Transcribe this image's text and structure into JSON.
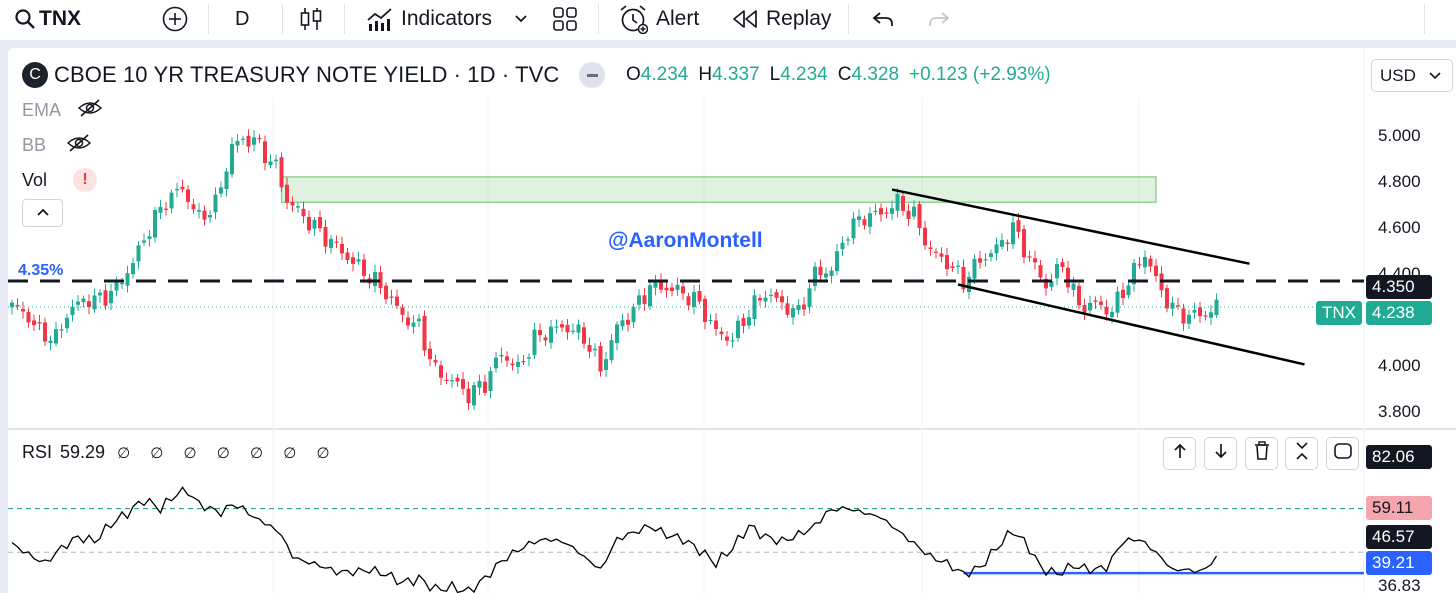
{
  "toolbar": {
    "symbol": "TNX",
    "interval": "D",
    "indicators_label": "Indicators",
    "alert_label": "Alert",
    "replay_label": "Replay",
    "icons": [
      "search-icon",
      "add-symbol-icon",
      "candles-icon",
      "indicators-icon",
      "chevron-down-icon",
      "layouts-icon",
      "alert-icon",
      "replay-icon",
      "undo-icon",
      "redo-icon"
    ]
  },
  "legend": {
    "badge": "C",
    "title": "CBOE 10 YR TREASURY NOTE YIELD · 1D · TVC",
    "ohlc": [
      {
        "key": "O",
        "value": "4.234"
      },
      {
        "key": "H",
        "value": "4.337"
      },
      {
        "key": "L",
        "value": "4.234"
      },
      {
        "key": "C",
        "value": "4.328"
      }
    ],
    "change": "+0.123 (+2.93%)",
    "indicators": [
      {
        "label": "EMA",
        "hidden": true
      },
      {
        "label": "BB",
        "hidden": true
      },
      {
        "label": "Vol",
        "warning": "!"
      }
    ]
  },
  "currency": "USD",
  "watermark": "@AaronMontell",
  "colors": {
    "up": "#22ab94",
    "down": "#f23645",
    "accent": "#2962ff",
    "dashed": "#131722"
  },
  "chart_data": [
    {
      "type": "candlestick",
      "title": "CBOE 10 YR TREASURY NOTE YIELD · 1D · TVC",
      "ylim": [
        3.75,
        5.08
      ],
      "y_ticks": [
        "5.000",
        "4.800",
        "4.600",
        "4.400",
        "4.000",
        "3.800"
      ],
      "price_labels": [
        {
          "text": "4.350",
          "value": 4.35,
          "style": "dark"
        },
        {
          "symbol": "TNX",
          "text": "4.238",
          "value": 4.238,
          "style": "green"
        }
      ],
      "left_level_label": "4.35%",
      "level_line": 4.35,
      "last_price_line": 4.238,
      "resistance_zone": {
        "from_bar": 49,
        "to_bar": 208,
        "low": 4.69,
        "high": 4.8
      },
      "trend_channel": {
        "upper": [
          [
            160,
            4.745
          ],
          [
            225,
            4.425
          ]
        ],
        "lower": [
          [
            172,
            4.335
          ],
          [
            235,
            3.99
          ]
        ]
      },
      "close_path": [
        [
          0,
          4.24
        ],
        [
          2,
          4.22
        ],
        [
          5,
          4.13
        ],
        [
          8,
          4.1
        ],
        [
          10,
          4.21
        ],
        [
          13,
          4.27
        ],
        [
          16,
          4.27
        ],
        [
          19,
          4.32
        ],
        [
          22,
          4.43
        ],
        [
          25,
          4.58
        ],
        [
          28,
          4.7
        ],
        [
          31,
          4.75
        ],
        [
          34,
          4.62
        ],
        [
          37,
          4.68
        ],
        [
          40,
          4.93
        ],
        [
          42,
          4.96
        ],
        [
          44,
          4.96
        ],
        [
          46,
          4.9
        ],
        [
          48,
          4.84
        ],
        [
          50,
          4.7
        ],
        [
          53,
          4.63
        ],
        [
          56,
          4.56
        ],
        [
          59,
          4.5
        ],
        [
          62,
          4.43
        ],
        [
          65,
          4.37
        ],
        [
          68,
          4.3
        ],
        [
          71,
          4.2
        ],
        [
          74,
          4.15
        ],
        [
          77,
          3.96
        ],
        [
          80,
          3.92
        ],
        [
          83,
          3.86
        ],
        [
          86,
          3.91
        ],
        [
          89,
          4.04
        ],
        [
          92,
          3.97
        ],
        [
          95,
          4.1
        ],
        [
          98,
          4.14
        ],
        [
          101,
          4.15
        ],
        [
          104,
          4.11
        ],
        [
          107,
          3.97
        ],
        [
          110,
          4.15
        ],
        [
          113,
          4.22
        ],
        [
          116,
          4.33
        ],
        [
          119,
          4.32
        ],
        [
          122,
          4.3
        ],
        [
          125,
          4.25
        ],
        [
          128,
          4.13
        ],
        [
          131,
          4.1
        ],
        [
          134,
          4.22
        ],
        [
          137,
          4.3
        ],
        [
          140,
          4.25
        ],
        [
          143,
          4.21
        ],
        [
          146,
          4.38
        ],
        [
          149,
          4.4
        ],
        [
          152,
          4.57
        ],
        [
          155,
          4.63
        ],
        [
          158,
          4.64
        ],
        [
          161,
          4.69
        ],
        [
          164,
          4.63
        ],
        [
          167,
          4.48
        ],
        [
          170,
          4.43
        ],
        [
          173,
          4.35
        ],
        [
          176,
          4.44
        ],
        [
          179,
          4.49
        ],
        [
          182,
          4.58
        ],
        [
          185,
          4.45
        ],
        [
          188,
          4.33
        ],
        [
          191,
          4.42
        ],
        [
          194,
          4.24
        ],
        [
          197,
          4.25
        ],
        [
          200,
          4.22
        ],
        [
          203,
          4.35
        ],
        [
          206,
          4.47
        ],
        [
          209,
          4.3
        ],
        [
          212,
          4.21
        ],
        [
          215,
          4.2
        ],
        [
          217,
          4.21
        ],
        [
          219,
          4.24
        ]
      ]
    },
    {
      "type": "line",
      "title": "RSI",
      "current_value": "59.29",
      "null_markers": "∅ ∅ ∅ ∅ ∅ ∅ ∅",
      "ylim": [
        35.5,
        84
      ],
      "bands": {
        "upper": 70,
        "middle": 50,
        "lower": 30
      },
      "axis_labels": [
        {
          "text": "82.06",
          "value": 82.06,
          "style": "dark"
        },
        {
          "text": "59.11",
          "value": 59.11,
          "style": "red"
        },
        {
          "text": "46.57",
          "value": 46.57,
          "style": "dark"
        },
        {
          "text": "39.21",
          "value": 39.21,
          "style": "blue"
        },
        {
          "text": "36.83",
          "value": 36.83,
          "style": "plain"
        }
      ],
      "support_line": {
        "from_bar": 173,
        "to_bar": 219,
        "value": 40.5
      },
      "values": [
        [
          0,
          54
        ],
        [
          3,
          49
        ],
        [
          6,
          45
        ],
        [
          9,
          52
        ],
        [
          12,
          57
        ],
        [
          15,
          55
        ],
        [
          18,
          63
        ],
        [
          21,
          68
        ],
        [
          24,
          74
        ],
        [
          27,
          70
        ],
        [
          30,
          77
        ],
        [
          32,
          78
        ],
        [
          34,
          72
        ],
        [
          36,
          70
        ],
        [
          38,
          68
        ],
        [
          40,
          72
        ],
        [
          42,
          70
        ],
        [
          44,
          66
        ],
        [
          47,
          62
        ],
        [
          49,
          58
        ],
        [
          51,
          48
        ],
        [
          53,
          46
        ],
        [
          56,
          44
        ],
        [
          59,
          41
        ],
        [
          62,
          41
        ],
        [
          65,
          42
        ],
        [
          68,
          40
        ],
        [
          71,
          36
        ],
        [
          74,
          38
        ],
        [
          77,
          33
        ],
        [
          80,
          34
        ],
        [
          83,
          32
        ],
        [
          86,
          38
        ],
        [
          89,
          46
        ],
        [
          92,
          51
        ],
        [
          95,
          55
        ],
        [
          98,
          56
        ],
        [
          101,
          54
        ],
        [
          104,
          48
        ],
        [
          107,
          42
        ],
        [
          110,
          56
        ],
        [
          113,
          59
        ],
        [
          116,
          62
        ],
        [
          119,
          58
        ],
        [
          122,
          56
        ],
        [
          125,
          51
        ],
        [
          128,
          45
        ],
        [
          131,
          52
        ],
        [
          134,
          62
        ],
        [
          137,
          57
        ],
        [
          140,
          55
        ],
        [
          143,
          58
        ],
        [
          146,
          62
        ],
        [
          148,
          68
        ],
        [
          150,
          70
        ],
        [
          152,
          70
        ],
        [
          155,
          68
        ],
        [
          158,
          66
        ],
        [
          161,
          60
        ],
        [
          164,
          54
        ],
        [
          167,
          48
        ],
        [
          170,
          45
        ],
        [
          173,
          40
        ],
        [
          176,
          43
        ],
        [
          179,
          52
        ],
        [
          182,
          60
        ],
        [
          185,
          52
        ],
        [
          187,
          43
        ],
        [
          190,
          40
        ],
        [
          193,
          44
        ],
        [
          196,
          42
        ],
        [
          199,
          43
        ],
        [
          202,
          55
        ],
        [
          205,
          56
        ],
        [
          208,
          50
        ],
        [
          211,
          42
        ],
        [
          214,
          42
        ],
        [
          216,
          41
        ],
        [
          219,
          47
        ]
      ]
    }
  ]
}
